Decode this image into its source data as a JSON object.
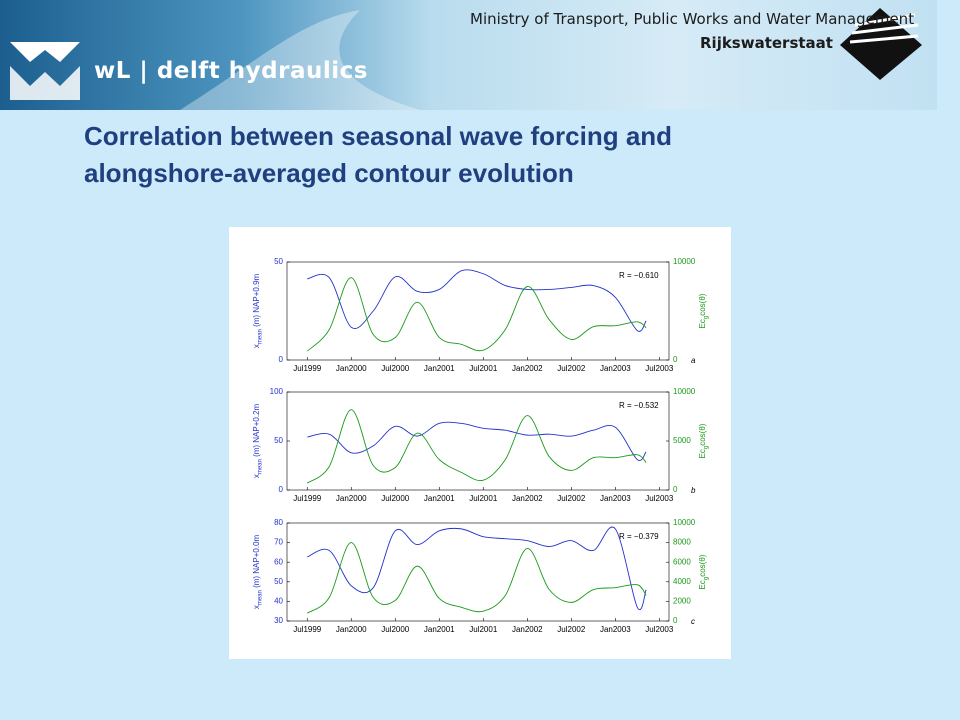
{
  "header": {
    "logo": "wL | delft hydraulics",
    "ministry": "Ministry of Transport, Public Works and Water Management",
    "agency": "Rijkswaterstaat"
  },
  "title": [
    "Correlation between seasonal wave forcing and",
    "alongshore-averaged contour evolution"
  ],
  "chart_data": [
    {
      "type": "line",
      "annotation": "R = −0.610",
      "panel": "a",
      "ylabel": {
        "main": "x",
        "sub": "mean",
        "rest": " (m) NAP+0.9m"
      },
      "y2label": {
        "main": "Ec",
        "sub": "g",
        "rest": "cos(θ)"
      },
      "x": [
        1999.5,
        1999.75,
        2000,
        2000.25,
        2000.5,
        2000.75,
        2001,
        2001.25,
        2001.5,
        2001.75,
        2002,
        2002.25,
        2002.5,
        2002.75,
        2003,
        2003.25,
        2003.35
      ],
      "xlim": [
        1999.27,
        2003.61
      ],
      "xticks": [
        {
          "value": 1999.5,
          "label": "Jul1999"
        },
        {
          "value": 2000,
          "label": "Jan2000"
        },
        {
          "value": 2000.5,
          "label": "Jul2000"
        },
        {
          "value": 2001,
          "label": "Jan2001"
        },
        {
          "value": 2001.5,
          "label": "Jul2001"
        },
        {
          "value": 2002,
          "label": "Jan2002"
        },
        {
          "value": 2002.5,
          "label": "Jul2002"
        },
        {
          "value": 2003,
          "label": "Jan2003"
        },
        {
          "value": 2003.5,
          "label": "Jul2003"
        }
      ],
      "ylim": [
        0,
        50
      ],
      "yticks": [
        0,
        50
      ],
      "y2lim": [
        0,
        10000
      ],
      "y2ticks": [
        0,
        10000
      ],
      "series": [
        {
          "name": "x_mean",
          "color": "#2233cc",
          "values": [
            41.4,
            42,
            16.7,
            25,
            42.4,
            35,
            36,
            45.5,
            44,
            38,
            36,
            36,
            37,
            38,
            32,
            15,
            20
          ]
        },
        {
          "name": "Ec_g cos",
          "color": "#1a9a1a",
          "axis": "y2",
          "values": [
            900,
            3100,
            8400,
            2600,
            2300,
            5900,
            2300,
            1600,
            1000,
            3100,
            7500,
            4100,
            2100,
            3400,
            3500,
            3900,
            3300
          ]
        }
      ]
    },
    {
      "type": "line",
      "annotation": "R = −0.532",
      "panel": "b",
      "ylabel": {
        "main": "x",
        "sub": "mean",
        "rest": " (m) NAP+0.2m"
      },
      "y2label": {
        "main": "Ec",
        "sub": "g",
        "rest": "cos(θ)"
      },
      "x": [
        1999.5,
        1999.75,
        2000,
        2000.25,
        2000.5,
        2000.75,
        2001,
        2001.25,
        2001.5,
        2001.75,
        2002,
        2002.25,
        2002.5,
        2002.75,
        2003,
        2003.25,
        2003.35
      ],
      "xlim": [
        1999.27,
        2003.61
      ],
      "xticks": [
        {
          "value": 1999.5,
          "label": "Jul1999"
        },
        {
          "value": 2000,
          "label": "Jan2000"
        },
        {
          "value": 2000.5,
          "label": "Jul2000"
        },
        {
          "value": 2001,
          "label": "Jan2001"
        },
        {
          "value": 2001.5,
          "label": "Jul2001"
        },
        {
          "value": 2002,
          "label": "Jan2002"
        },
        {
          "value": 2002.5,
          "label": "Jul2002"
        },
        {
          "value": 2003,
          "label": "Jan2003"
        },
        {
          "value": 2003.5,
          "label": "Jul2003"
        }
      ],
      "ylim": [
        0,
        100
      ],
      "yticks": [
        0,
        50,
        100
      ],
      "y2lim": [
        0,
        10000
      ],
      "y2ticks": [
        0,
        5000,
        10000
      ],
      "series": [
        {
          "name": "x_mean",
          "color": "#2233cc",
          "values": [
            54,
            57,
            38,
            45,
            65,
            55,
            68,
            68,
            63,
            61,
            56,
            57,
            55,
            61,
            64,
            31,
            39
          ]
        },
        {
          "name": "Ec_g cos",
          "color": "#1a9a1a",
          "axis": "y2",
          "values": [
            700,
            2400,
            8200,
            2500,
            2300,
            5800,
            3100,
            1800,
            1000,
            3100,
            7600,
            3400,
            2000,
            3300,
            3300,
            3600,
            2800
          ]
        }
      ]
    },
    {
      "type": "line",
      "annotation": "R = −0.379",
      "panel": "c",
      "ylabel": {
        "main": "x",
        "sub": "mean",
        "rest": " (m) NAP+0.0m"
      },
      "y2label": {
        "main": "Ec",
        "sub": "g",
        "rest": "cos(θ)"
      },
      "x": [
        1999.5,
        1999.75,
        2000,
        2000.25,
        2000.5,
        2000.75,
        2001,
        2001.25,
        2001.5,
        2001.75,
        2002,
        2002.25,
        2002.5,
        2002.75,
        2003,
        2003.25,
        2003.35
      ],
      "xlim": [
        1999.27,
        2003.61
      ],
      "xticks": [
        {
          "value": 1999.5,
          "label": "Jul1999"
        },
        {
          "value": 2000,
          "label": "Jan2000"
        },
        {
          "value": 2000.5,
          "label": "Jul2000"
        },
        {
          "value": 2001,
          "label": "Jan2001"
        },
        {
          "value": 2001.5,
          "label": "Jul2001"
        },
        {
          "value": 2002,
          "label": "Jan2002"
        },
        {
          "value": 2002.5,
          "label": "Jul2002"
        },
        {
          "value": 2003,
          "label": "Jan2003"
        },
        {
          "value": 2003.5,
          "label": "Jul2003"
        }
      ],
      "ylim": [
        30,
        80
      ],
      "yticks": [
        30,
        40,
        50,
        60,
        70,
        80
      ],
      "y2lim": [
        0,
        10000
      ],
      "y2ticks": [
        0,
        2000,
        4000,
        6000,
        8000,
        10000
      ],
      "series": [
        {
          "name": "x_mean",
          "color": "#2233cc",
          "values": [
            62.7,
            66,
            48,
            47,
            76,
            69,
            76,
            77,
            73,
            72,
            71,
            68,
            71,
            66,
            77,
            37,
            46
          ]
        },
        {
          "name": "Ec_g cos",
          "color": "#1a9a1a",
          "axis": "y2",
          "values": [
            800,
            2400,
            8000,
            2400,
            2100,
            5600,
            2300,
            1400,
            1000,
            2600,
            7400,
            3200,
            1900,
            3200,
            3400,
            3700,
            2600
          ]
        }
      ]
    }
  ]
}
